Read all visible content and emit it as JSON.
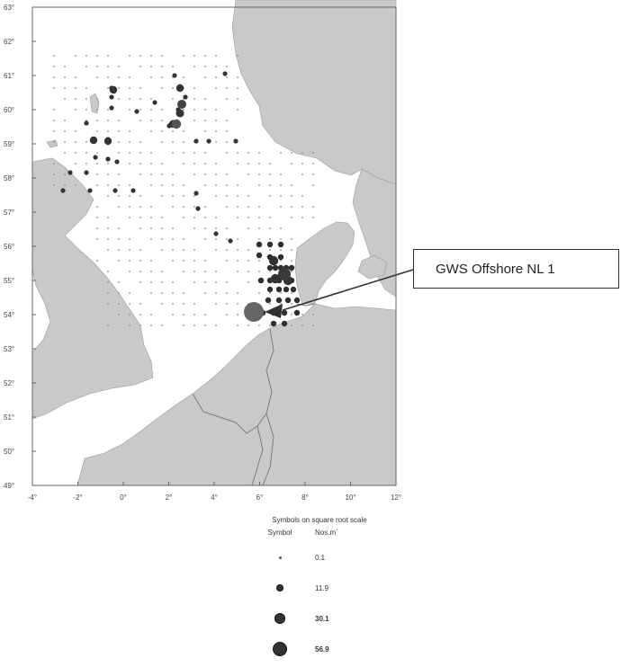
{
  "map": {
    "lat_labels": [
      "63°",
      "62°",
      "61°",
      "60°",
      "59°",
      "58°",
      "57°",
      "56°",
      "55°",
      "54°",
      "53°",
      "52°",
      "51°",
      "50°",
      "49°"
    ],
    "lon_labels": [
      "-4°",
      "-2°",
      "0°",
      "2°",
      "4°",
      "6°",
      "8°",
      "10°",
      "12°"
    ],
    "colors": {
      "land": "#c9c9c9",
      "sea": "#ffffff",
      "border": "#8a8a8a",
      "symbol": "#333333"
    }
  },
  "callout": {
    "label": "GWS Offshore NL 1"
  },
  "legend": {
    "title": "Symbols on square root scale",
    "col_symbol": "Symbol",
    "col_value": "Nos.m´",
    "rows": [
      {
        "value": "0.1"
      },
      {
        "value": "11.9"
      },
      {
        "value": "30.1"
      },
      {
        "value": "56.9"
      }
    ]
  }
}
